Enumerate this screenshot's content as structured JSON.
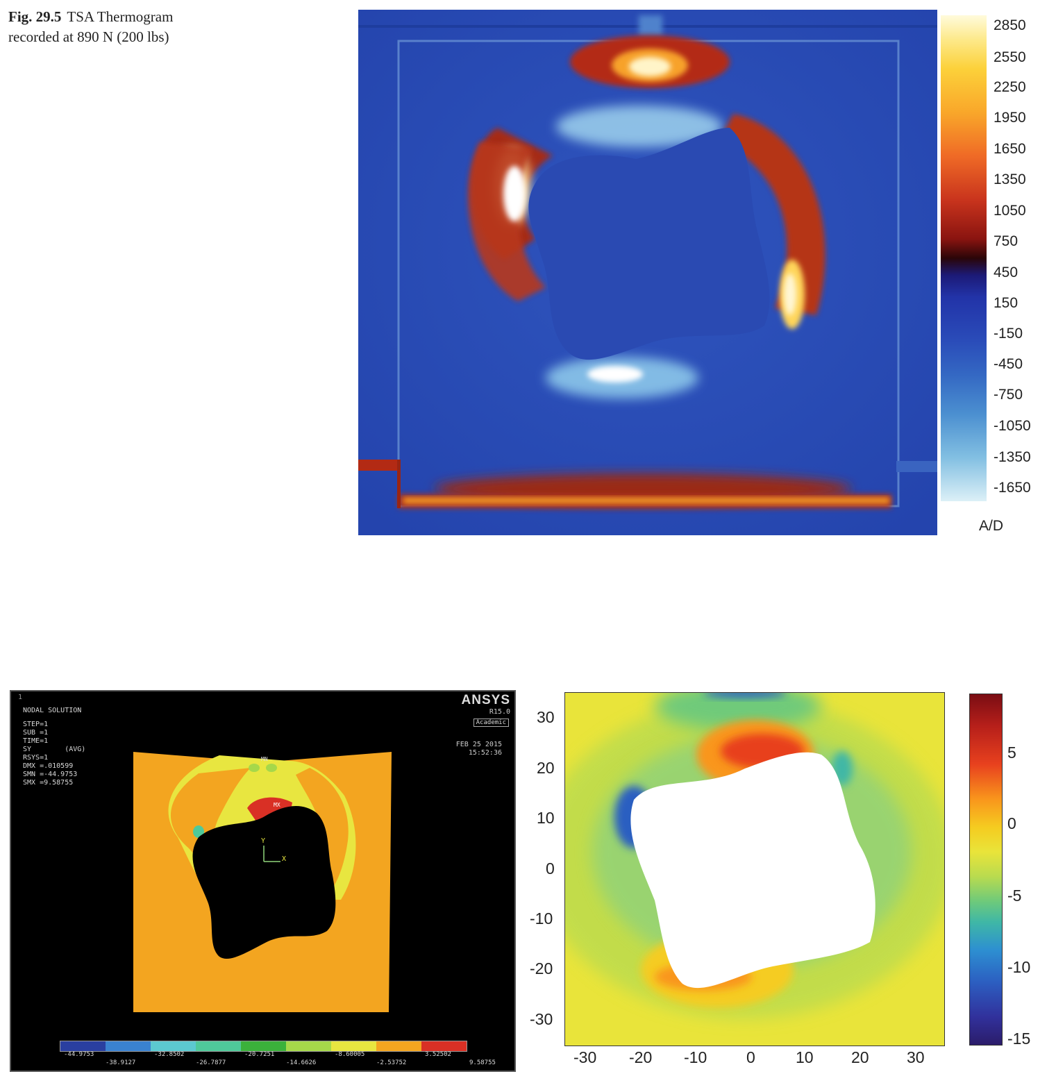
{
  "caption": {
    "label": "Fig. 29.5",
    "text_line1": "TSA Thermogram",
    "text_line2": "recorded at 890 N (200 lbs)"
  },
  "tsa": {
    "colorbar_ticks": [
      "2850",
      "2550",
      "2250",
      "1950",
      "1650",
      "1350",
      "1050",
      "750",
      "450",
      "150",
      "-150",
      "-450",
      "-750",
      "-1050",
      "-1350",
      "-1650"
    ],
    "unit": "A/D"
  },
  "ansys": {
    "index": "1",
    "info_lines": [
      "NODAL SOLUTION",
      "STEP=1",
      "SUB =1",
      "TIME=1",
      "SY        (AVG)",
      "RSYS=1",
      "DMX =.010599",
      "SMN =-44.9753",
      "SMX =9.58755"
    ],
    "logo": "ANSYS",
    "version": "R15.0",
    "edition": "Academic",
    "date": "FEB 25 2015",
    "time": "15:52:36",
    "mn_label": "MN",
    "mx_label": "MX",
    "axis_y": "Y",
    "axis_x": "X",
    "legend_colors": [
      "#2a3fa0",
      "#3a82d0",
      "#5cc9d0",
      "#4fc99a",
      "#3bb13b",
      "#a6d84a",
      "#e8e640",
      "#f3a520",
      "#d93025"
    ],
    "legend_top_labels": [
      "-44.9753",
      "-32.8502",
      "-20.7251",
      "-8.60005",
      "3.52502"
    ],
    "legend_bottom_labels": [
      "-38.9127",
      "-26.7877",
      "-14.6626",
      "-2.53752",
      "9.58755"
    ]
  },
  "chart_data": {
    "type": "heatmap",
    "title": "",
    "xlabel": "",
    "ylabel": "",
    "xlim": [
      -35,
      35
    ],
    "ylim": [
      -35,
      35
    ],
    "x_ticks": [
      "-30",
      "-20",
      "-10",
      "0",
      "10",
      "20",
      "30"
    ],
    "y_ticks": [
      "30",
      "20",
      "10",
      "0",
      "-10",
      "-20",
      "-30"
    ],
    "colorbar_range": [
      -16,
      9
    ],
    "colorbar_ticks": [
      "5",
      "0",
      "-5",
      "-10",
      "-15"
    ],
    "colormap": "parula-jet"
  }
}
